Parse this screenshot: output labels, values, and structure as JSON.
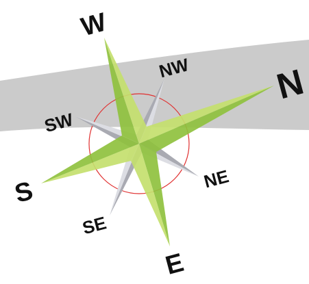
{
  "labels": {
    "w": "W",
    "nw": "NW",
    "n": "N",
    "sw": "SW",
    "s": "S",
    "ne": "NE",
    "se": "SE",
    "e": "E"
  }
}
